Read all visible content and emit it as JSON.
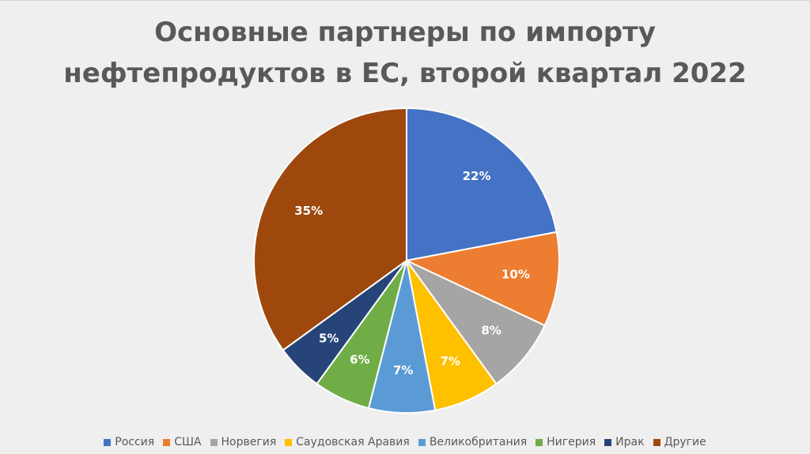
{
  "chart_data": {
    "type": "pie",
    "title_lines": [
      "Основные партнеры по импорту",
      "нефтепродуктов в ЕС, второй квартал 2022"
    ],
    "series": [
      {
        "name": "Россия",
        "value": 22,
        "label": "22%",
        "color": "#4472c4"
      },
      {
        "name": "США",
        "value": 10,
        "label": "10%",
        "color": "#ed7d31"
      },
      {
        "name": "Норвегия",
        "value": 8,
        "label": "8%",
        "color": "#a5a5a5"
      },
      {
        "name": "Саудовская Аравия",
        "value": 7,
        "label": "7%",
        "color": "#ffc000"
      },
      {
        "name": "Великобритания",
        "value": 7,
        "label": "7%",
        "color": "#5b9bd5"
      },
      {
        "name": "Нигерия",
        "value": 6,
        "label": "6%",
        "color": "#70ad47"
      },
      {
        "name": "Ирак",
        "value": 5,
        "label": "5%",
        "color": "#264478"
      },
      {
        "name": "Другие",
        "value": 35,
        "label": "35%",
        "color": "#9e480e"
      }
    ],
    "legend_position": "bottom"
  }
}
